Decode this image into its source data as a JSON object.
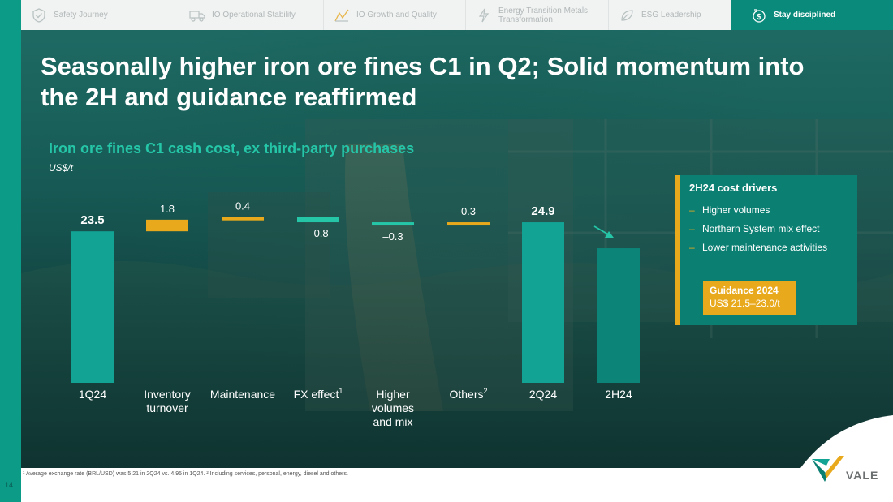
{
  "page_number": "14",
  "nav": {
    "tabs": [
      {
        "label": "Safety Journey",
        "icon": "shield-check-icon",
        "active": false
      },
      {
        "label": "IO Operational Stability",
        "icon": "truck-icon",
        "active": false
      },
      {
        "label": "IO Growth and Quality",
        "icon": "growth-icon",
        "active": false
      },
      {
        "label": "Energy Transition Metals Transformation",
        "icon": "lightning-icon",
        "active": false
      },
      {
        "label": "ESG Leadership",
        "icon": "leaf-icon",
        "active": false
      },
      {
        "label": "Stay disciplined",
        "icon": "dollar-cycle-icon",
        "active": true
      }
    ]
  },
  "title": "Seasonally higher iron ore fines C1 in Q2; Solid momentum into the 2H and guidance reaffirmed",
  "subtitle": "Iron ore fines C1 cash cost, ex third-party purchases",
  "unit": "US$/t",
  "chart_data": {
    "type": "bar",
    "subtype": "waterfall",
    "title": "Iron ore fines C1 cash cost, ex third-party purchases",
    "ylabel": "US$/t",
    "categories": [
      "1Q24",
      "Inventory turnover",
      "Maintenance",
      "FX effect",
      "Higher volumes and mix",
      "Others",
      "2Q24",
      "2H24"
    ],
    "category_superscripts": [
      "",
      "",
      "",
      "1",
      "",
      "2",
      "",
      ""
    ],
    "values": [
      23.5,
      1.8,
      0.4,
      -0.8,
      -0.3,
      0.3,
      24.9,
      null
    ],
    "labels": [
      "23.5",
      "1.8",
      "0.4",
      "–0.8",
      "–0.3",
      "0.3",
      "24.9",
      ""
    ],
    "bar_kinds": [
      "total",
      "delta",
      "delta",
      "delta",
      "delta",
      "delta",
      "total",
      "projection"
    ],
    "colors": {
      "total": "#12a394",
      "increase": "#e8a91c",
      "decrease": "#25c6a8"
    }
  },
  "drivers": {
    "title": "2H24 cost drivers",
    "items": [
      "Higher volumes",
      "Northern System mix effect",
      "Lower maintenance activities"
    ],
    "guidance_title": "Guidance 2024",
    "guidance_value": "US$ 21.5–23.0/t"
  },
  "footnote": "¹ Average exchange rate (BRL/USD) was 5.21 in 2Q24 vs. 4.95 in 1Q24.   ² Including services, personal, energy, diesel and others.",
  "logo_text": "VALE"
}
